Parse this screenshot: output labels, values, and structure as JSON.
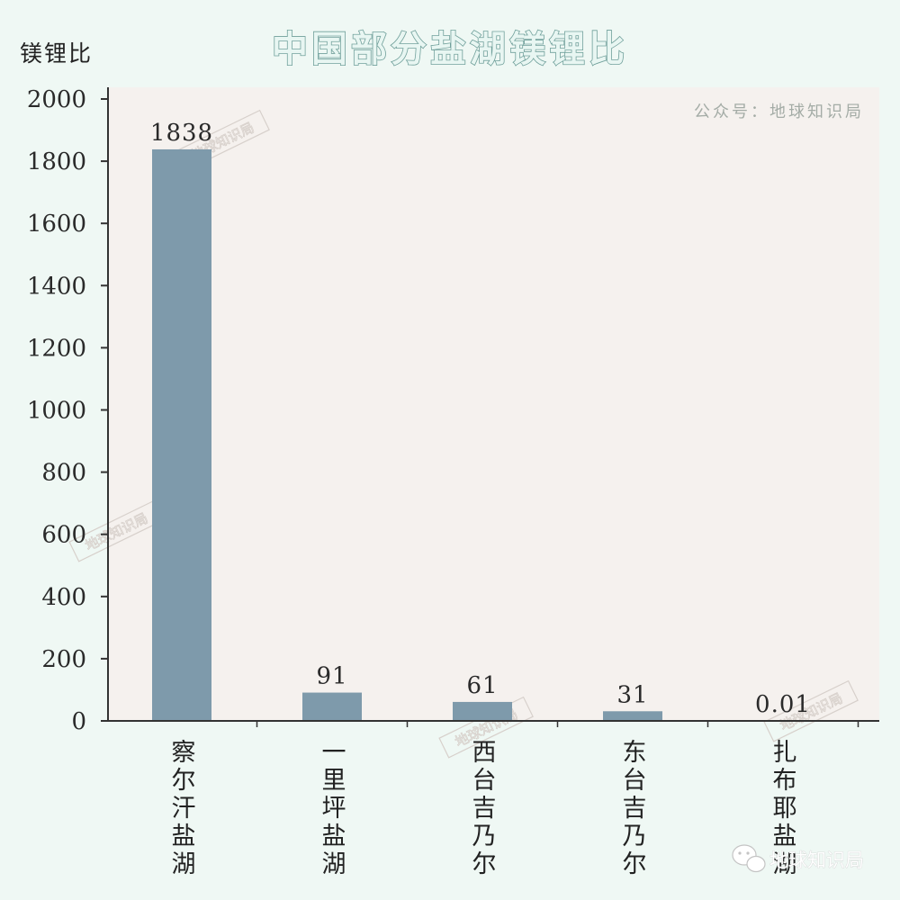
{
  "chart_data": {
    "type": "bar",
    "title": "中国部分盐湖镁锂比",
    "ylabel": "镁锂比",
    "xlabel": "",
    "categories": [
      "察尔汗盐湖",
      "一里坪盐湖",
      "西台吉乃尔",
      "东台吉乃尔",
      "扎布耶盐湖"
    ],
    "values": [
      1838,
      91,
      61,
      31,
      0.01
    ],
    "value_labels": [
      "1838",
      "91",
      "61",
      "31",
      "0.01"
    ],
    "yticks": [
      "0",
      "200",
      "400",
      "600",
      "800",
      "1000",
      "1200",
      "1400",
      "1600",
      "1800",
      "2000"
    ],
    "ylim": [
      0,
      2000
    ],
    "grid": false,
    "colors": {
      "bar": "#7e9aab",
      "plot_bg": "#f5f1ee",
      "page_bg": "#eff8f4",
      "axis": "#333333"
    }
  },
  "credit": "公众号：地球知识局",
  "watermark": "地球知识局",
  "signature": "地球知识局",
  "signature_icon": "wechat-icon"
}
